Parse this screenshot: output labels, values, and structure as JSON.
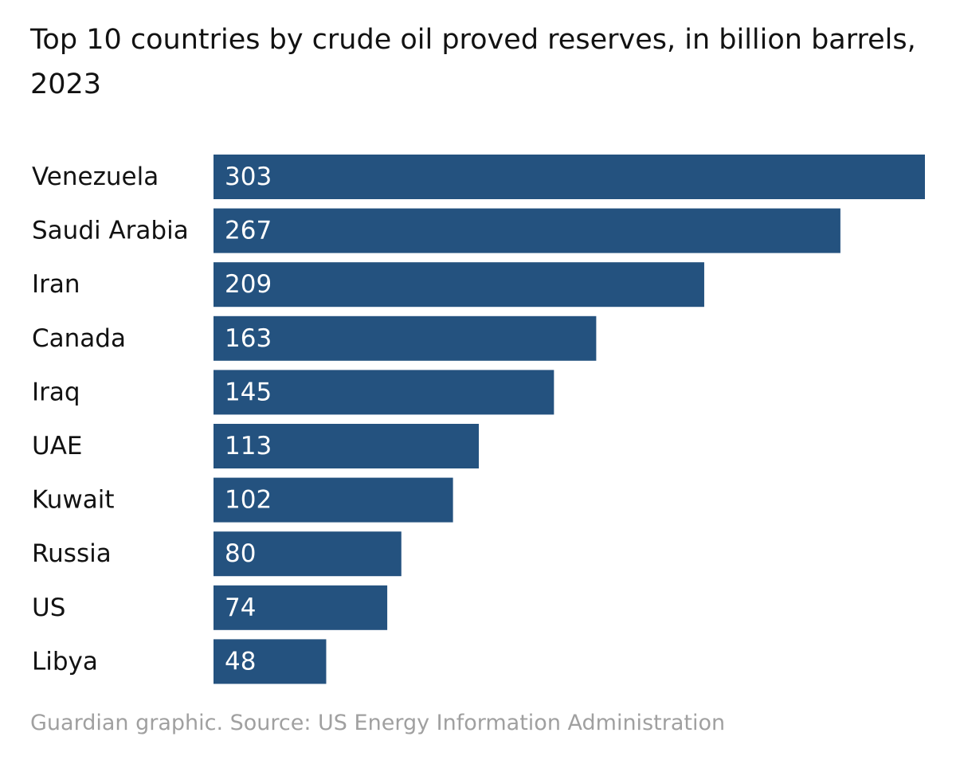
{
  "chart_data": {
    "type": "bar",
    "orientation": "horizontal",
    "title": "Top 10 countries by crude oil proved reserves, in billion barrels, 2023",
    "categories": [
      "Venezuela",
      "Saudi Arabia",
      "Iran",
      "Canada",
      "Iraq",
      "UAE",
      "Kuwait",
      "Russia",
      "US",
      "Libya"
    ],
    "values": [
      303,
      267,
      209,
      163,
      145,
      113,
      102,
      80,
      74,
      48
    ],
    "xlim": [
      0,
      303
    ],
    "xlabel": "",
    "ylabel": "",
    "grid": false,
    "data_labels": "inside-bar-start",
    "bar_color": "#24527f",
    "data_label_color": "#ffffff",
    "source": "Guardian graphic. Source: US Energy Information Administration"
  }
}
